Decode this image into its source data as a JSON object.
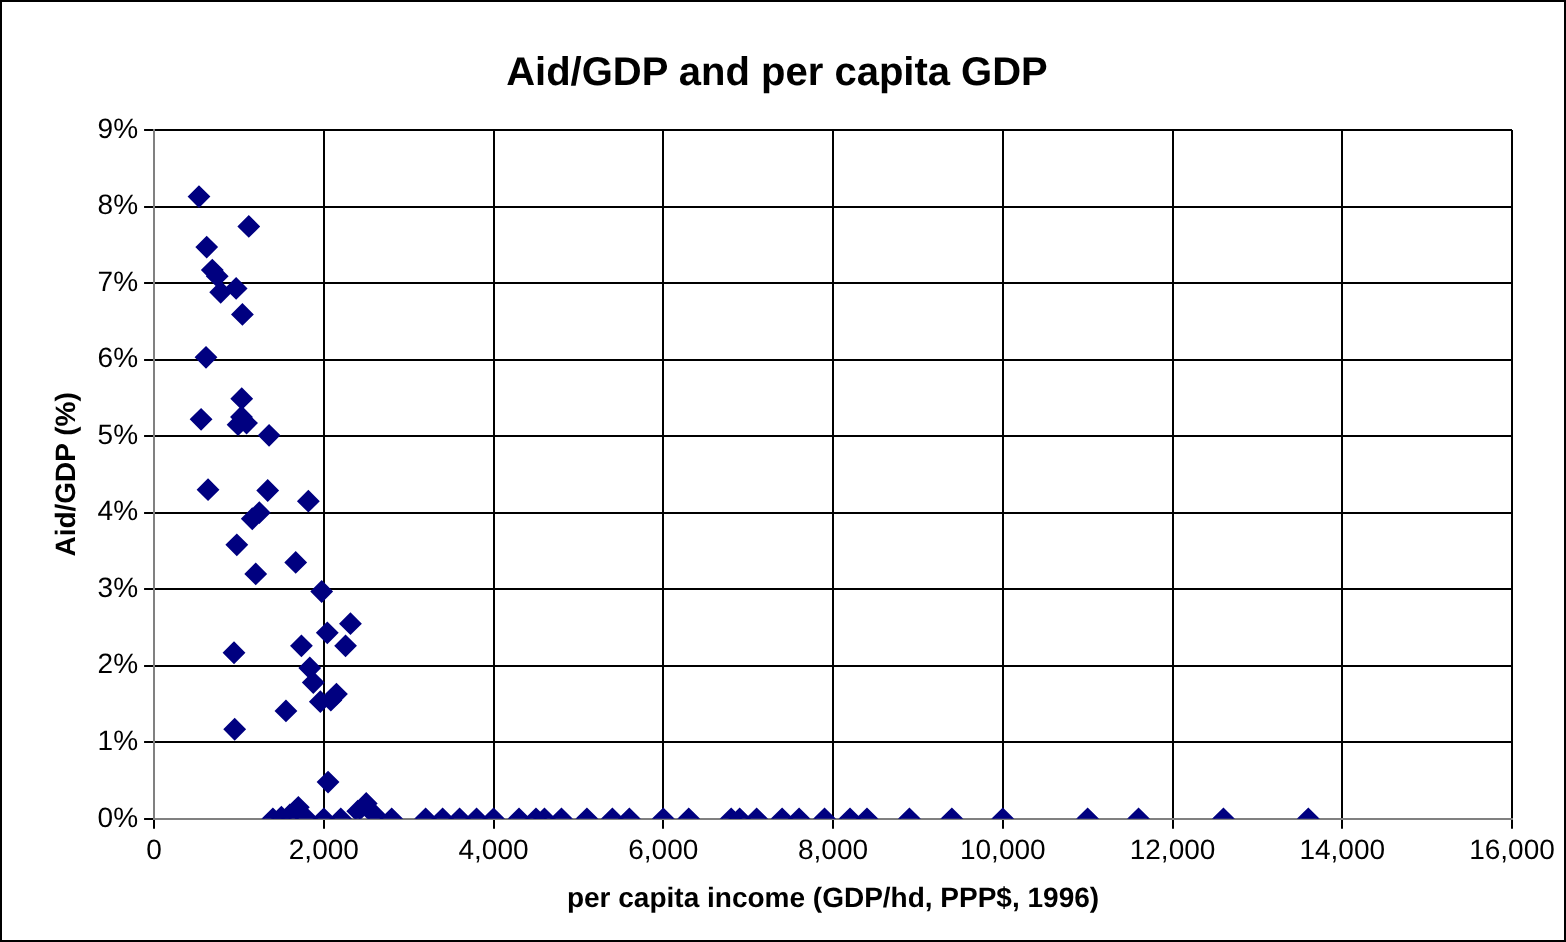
{
  "chart_data": {
    "type": "scatter",
    "title": "Aid/GDP and per capita GDP",
    "xlabel": "per capita income (GDP/hd, PPP$, 1996)",
    "ylabel": "Aid/GDP (%)",
    "x": [
      529,
      1116,
      620,
      686,
      744,
      785,
      967,
      1041,
      612,
      1033,
      554,
      990,
      1090,
      1030,
      1355,
      636,
      1339,
      1818,
      1157,
      1240,
      975,
      1669,
      1198,
      1975,
      2314,
      2041,
      2256,
      1736,
      942,
      1835,
      1876,
      2149,
      2083,
      1959,
      1554,
      950,
      2050,
      1400,
      1500,
      1600,
      1700,
      1800,
      2000,
      2200,
      2400,
      2500,
      2600,
      2800,
      3200,
      3400,
      3600,
      3800,
      4000,
      4300,
      4500,
      4600,
      4800,
      5100,
      5400,
      5600,
      6000,
      6300,
      6800,
      6900,
      7100,
      7400,
      7600,
      7900,
      8200,
      8400,
      8900,
      9400,
      10000,
      11000,
      11600,
      12600,
      13600
    ],
    "series": [
      {
        "color": "#000080",
        "values": [
          8.13,
          7.74,
          7.47,
          7.17,
          7.09,
          6.88,
          6.93,
          6.59,
          6.03,
          5.49,
          5.22,
          5.15,
          5.17,
          5.25,
          5.01,
          4.3,
          4.29,
          4.15,
          3.92,
          4.0,
          3.58,
          3.35,
          3.2,
          2.97,
          2.55,
          2.43,
          2.26,
          2.26,
          2.17,
          1.97,
          1.78,
          1.63,
          1.55,
          1.53,
          1.41,
          1.17,
          0.48,
          0,
          0.02,
          0.05,
          0.15,
          0,
          0,
          0,
          0.1,
          0.2,
          0.05,
          0,
          0,
          0,
          0,
          0,
          0,
          0,
          0,
          0,
          0,
          0,
          0,
          0,
          0,
          0,
          0,
          0,
          0,
          0,
          0,
          0,
          0,
          0,
          0,
          0,
          0,
          0,
          0,
          0,
          0
        ]
      }
    ],
    "xlim": [
      0,
      16000
    ],
    "xticks": [
      0,
      {
        "value": 2000,
        "label": "2,000"
      },
      {
        "value": 4000,
        "label": "4,000"
      },
      {
        "value": 6000,
        "label": "6,000"
      },
      {
        "value": 8000,
        "label": "8,000"
      },
      {
        "value": 10000,
        "label": "10,000"
      },
      {
        "value": 12000,
        "label": "12,000"
      },
      {
        "value": 14000,
        "label": "14,000"
      },
      {
        "value": 16000,
        "label": "16,000"
      }
    ],
    "ylim": [
      0,
      9
    ],
    "yticks": [
      {
        "value": 0,
        "label": "0%"
      },
      {
        "value": 1,
        "label": "1%"
      },
      {
        "value": 2,
        "label": "2%"
      },
      {
        "value": 3,
        "label": "3%"
      },
      {
        "value": 4,
        "label": "4%"
      },
      {
        "value": 5,
        "label": "5%"
      },
      {
        "value": 6,
        "label": "6%"
      },
      {
        "value": 7,
        "label": "7%"
      },
      {
        "value": 8,
        "label": "8%"
      },
      {
        "value": 9,
        "label": "9%"
      }
    ],
    "grid": true,
    "legend": false,
    "marker": "diamond"
  }
}
